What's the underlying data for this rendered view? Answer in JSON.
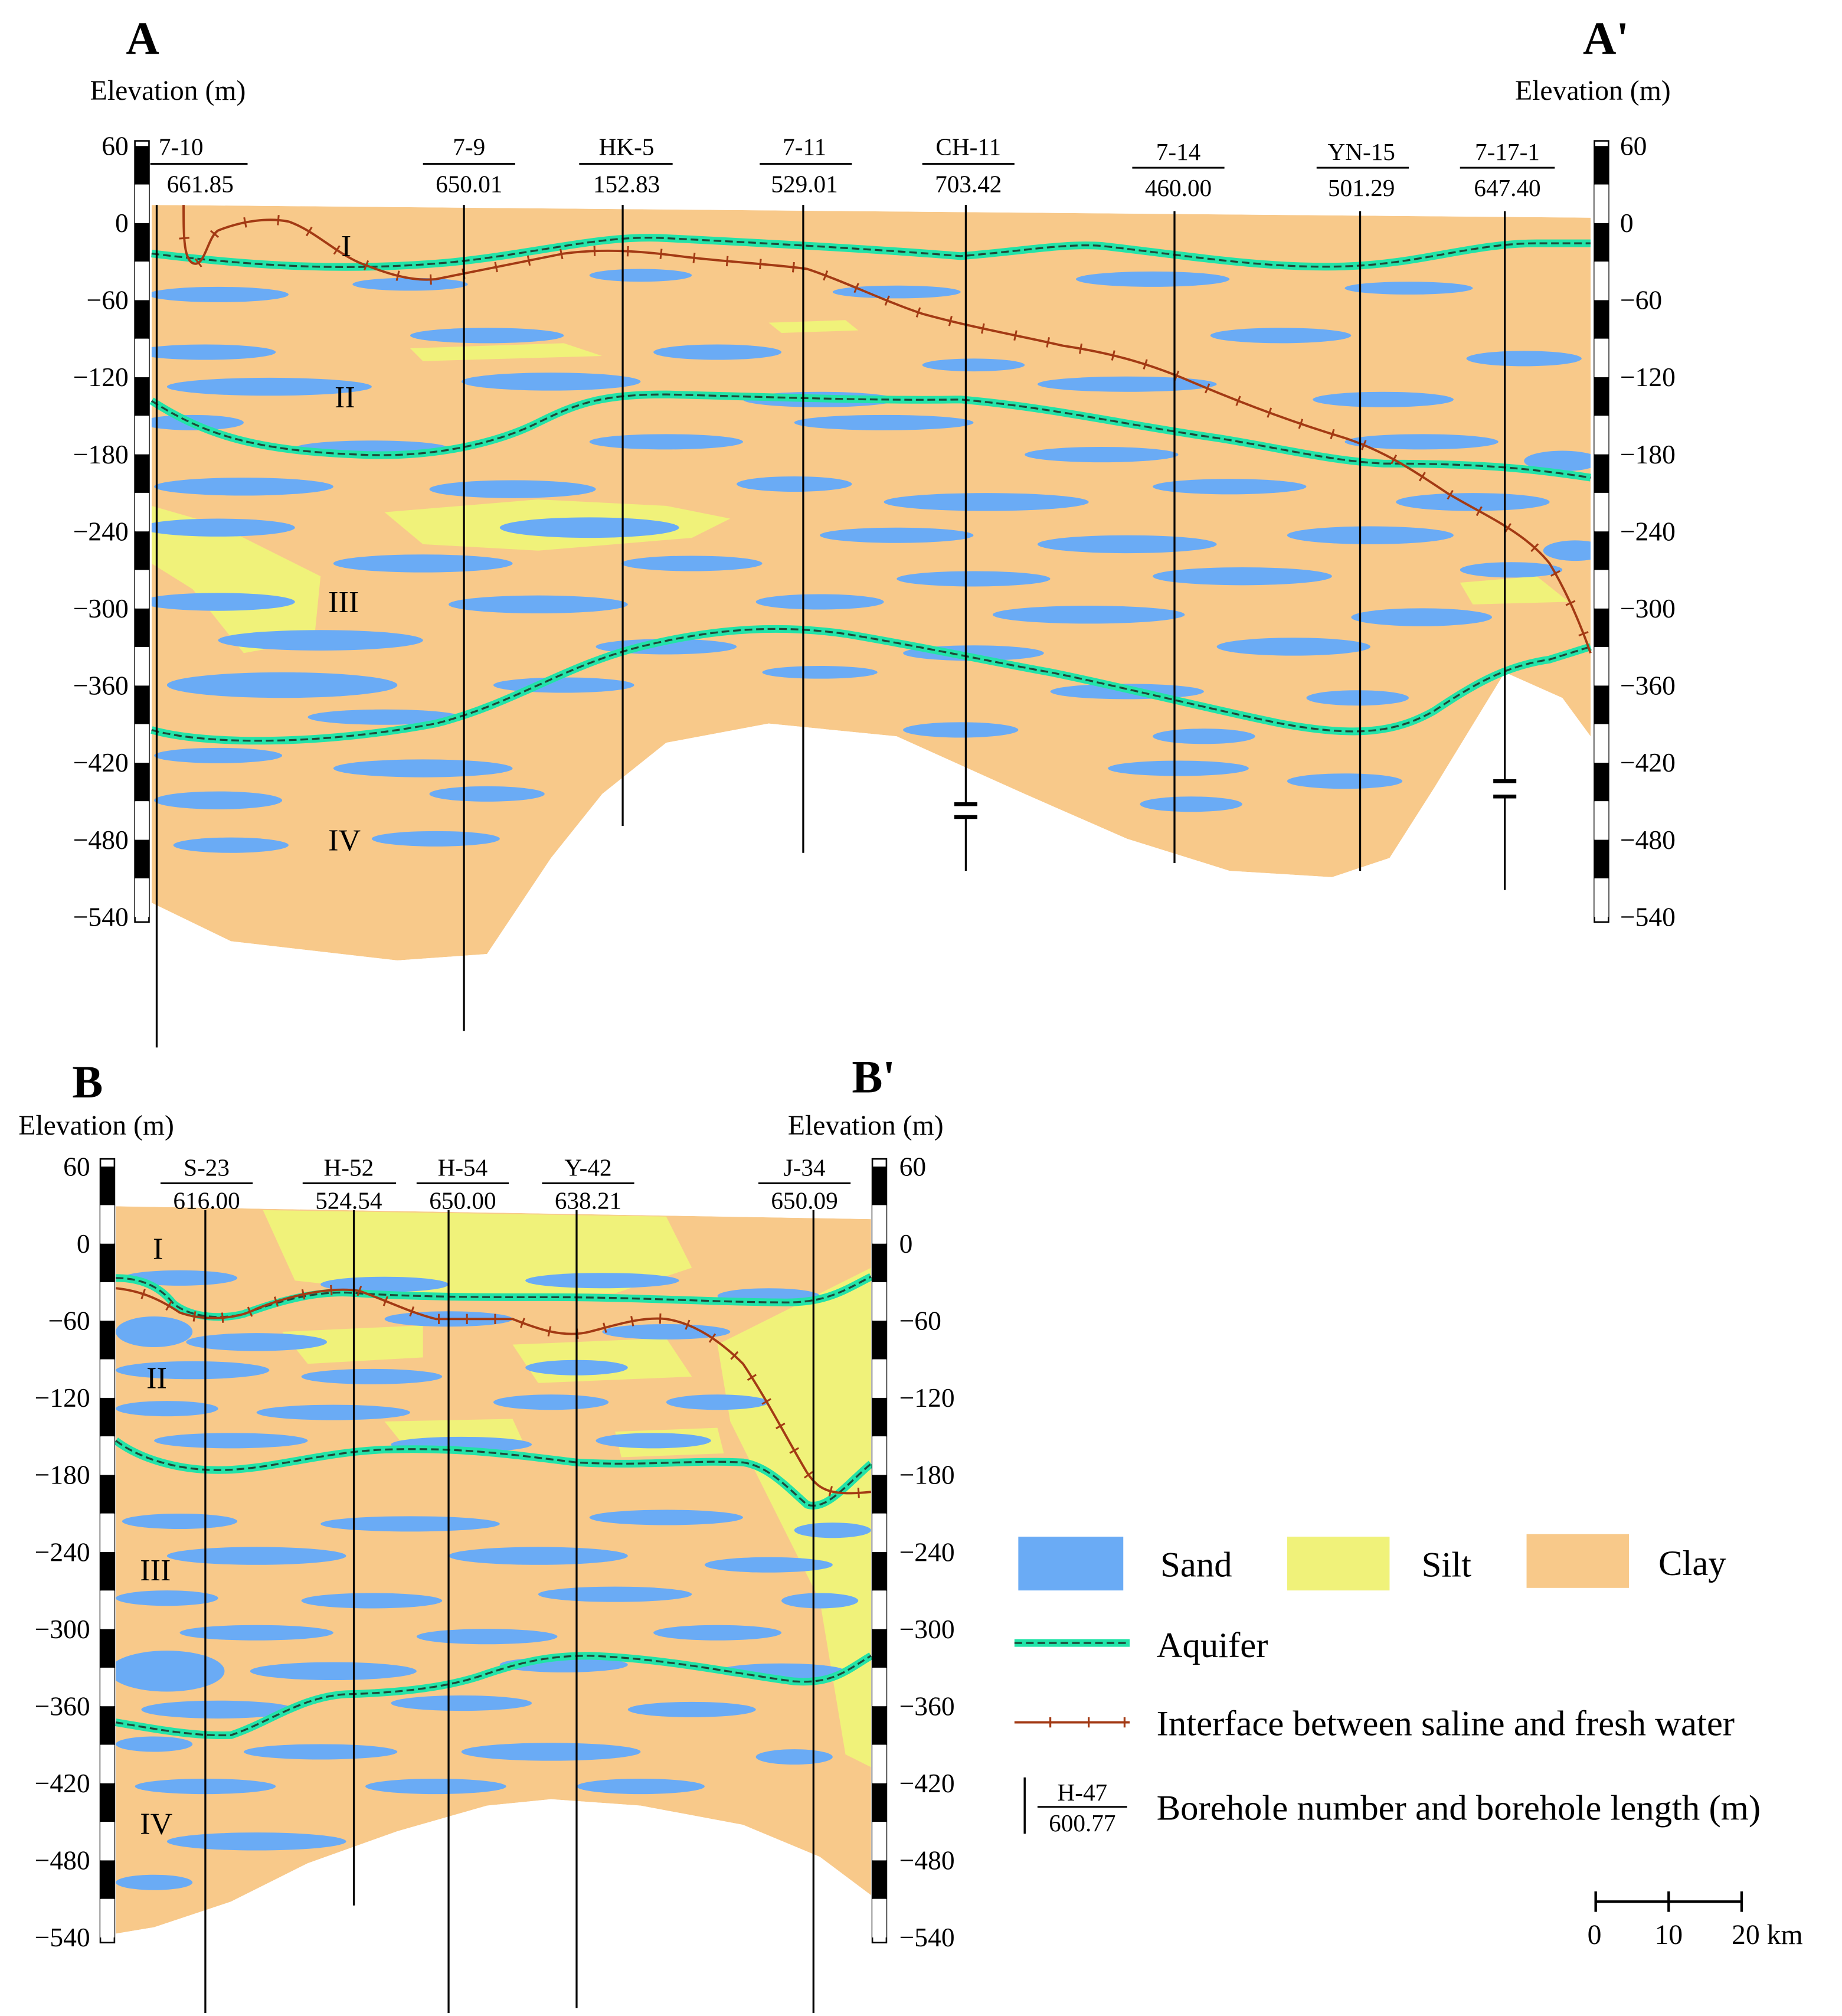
{
  "colors": {
    "sand": "#6aabf5",
    "silt": "#f0f27a",
    "clay": "#f8c98a",
    "aquifer_core": "#1e4a3a",
    "aquifer_halo": "#22e3a8",
    "interface": "#a33a14",
    "ink": "#000000"
  },
  "legend": {
    "sand": "Sand",
    "silt": "Silt",
    "clay": "Clay",
    "aquifer": "Aquifer",
    "interface": "Interface between saline and fresh water",
    "borehole_example_id": "H-47",
    "borehole_example_length": "600.77",
    "borehole": "Borehole number and borehole length (m)"
  },
  "scale_bar": {
    "labels": [
      "0",
      "10",
      "20 km"
    ]
  },
  "sections": [
    {
      "id": "A",
      "left_label": "A",
      "right_label": "A'",
      "axis_title": "Elevation (m)",
      "ticks": [
        "60",
        "0",
        "−60",
        "−120",
        "−180",
        "−240",
        "−300",
        "−360",
        "−420",
        "−480",
        "−540"
      ],
      "units": [
        "I",
        "II",
        "III",
        "IV"
      ],
      "boreholes": [
        {
          "id": "7-10",
          "length": "661.85",
          "bottom_elev": -645,
          "broken": false
        },
        {
          "id": "7-9",
          "length": "650.01",
          "bottom_elev": -635,
          "broken": false
        },
        {
          "id": "HK-5",
          "length": "152.83",
          "bottom_elev": -465,
          "broken": false
        },
        {
          "id": "7-11",
          "length": "529.01",
          "bottom_elev": -490,
          "broken": false
        },
        {
          "id": "CH-11",
          "length": "703.42",
          "bottom_elev": -505,
          "broken": true
        },
        {
          "id": "7-14",
          "length": "460.00",
          "bottom_elev": -498,
          "broken": false
        },
        {
          "id": "YN-15",
          "length": "501.29",
          "bottom_elev": -505,
          "broken": false
        },
        {
          "id": "7-17-1",
          "length": "647.40",
          "bottom_elev": -520,
          "broken": true
        }
      ]
    },
    {
      "id": "B",
      "left_label": "B",
      "right_label": "B'",
      "axis_title": "Elevation (m)",
      "ticks": [
        "60",
        "0",
        "−60",
        "−120",
        "−180",
        "−240",
        "−300",
        "−360",
        "−420",
        "−480",
        "−540"
      ],
      "units": [
        "I",
        "II",
        "III",
        "IV"
      ],
      "boreholes": [
        {
          "id": "S-23",
          "length": "616.00",
          "bottom_elev": -615,
          "broken": false
        },
        {
          "id": "H-52",
          "length": "524.54",
          "bottom_elev": -515,
          "broken": false
        },
        {
          "id": "H-54",
          "length": "650.00",
          "bottom_elev": -612,
          "broken": false
        },
        {
          "id": "Y-42",
          "length": "638.21",
          "bottom_elev": -595,
          "broken": false
        },
        {
          "id": "J-34",
          "length": "650.09",
          "bottom_elev": -617,
          "broken": false
        }
      ]
    }
  ]
}
